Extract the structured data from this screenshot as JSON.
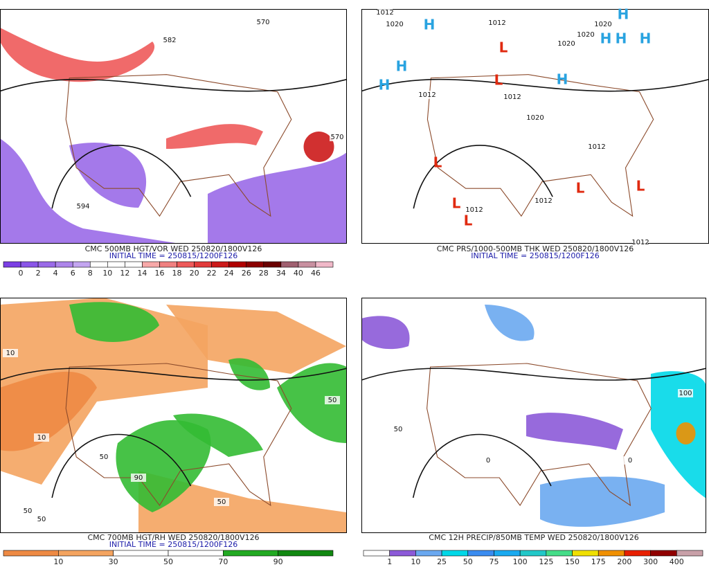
{
  "panels": [
    {
      "caption": "CMC 500MB HGT/VOR WED 250820/1800V126",
      "initial": "INITIAL TIME = 250815/1200F126",
      "colorbar": {
        "labels": [
          "0",
          "2",
          "4",
          "6",
          "8",
          "10",
          "12",
          "14",
          "16",
          "18",
          "20",
          "22",
          "24",
          "26",
          "28",
          "34",
          "40",
          "46"
        ],
        "colors": [
          "#7b3fe4",
          "#8a55e8",
          "#9a6ae8",
          "#ad85ea",
          "#c3a5f0",
          "#ffffff",
          "#ffffff",
          "#ffffff",
          "#f7a8a8",
          "#f08080",
          "#ee5a5a",
          "#e23a3a",
          "#cc1a1a",
          "#b00000",
          "#8c0000",
          "#6a0000",
          "#a06070",
          "#c890a0",
          "#f0b8c8"
        ]
      },
      "map_labels": [
        "570",
        "582",
        "594",
        "570"
      ]
    },
    {
      "caption": "CMC PRS/1000-500MB THK WED 250820/1800V126",
      "initial": "INITIAL TIME = 250815/1200F126",
      "pressure_centers": [
        "H",
        "H",
        "H",
        "H",
        "H",
        "H",
        "H",
        "H",
        "L",
        "L",
        "L",
        "L",
        "L",
        "L",
        "L"
      ],
      "map_labels": [
        "1012",
        "1020",
        "1012",
        "1020",
        "1020",
        "1020",
        "1012",
        "1020",
        "1012",
        "1012",
        "1012",
        "1012",
        "1012"
      ]
    },
    {
      "caption": "CMC 700MB HGT/RH WED 250820/1800V126",
      "initial": "INITIAL TIME = 250815/1200F126",
      "colorbar": {
        "labels": [
          "10",
          "30",
          "50",
          "70",
          "90"
        ],
        "colors": [
          "#ee8a44",
          "#f4a460",
          "#ffffff",
          "#ffffff",
          "#22aa22",
          "#118811"
        ]
      },
      "map_labels": [
        "10",
        "10",
        "50",
        "50",
        "90",
        "50",
        "50",
        "50"
      ]
    },
    {
      "caption": "CMC 12H PRECIP/850MB TEMP WED 250820/1800V126",
      "colorbar": {
        "labels": [
          "1",
          "10",
          "25",
          "50",
          "75",
          "100",
          "125",
          "150",
          "175",
          "200",
          "300",
          "400"
        ],
        "colors": [
          "#ffffff",
          "#8c5ad8",
          "#6aa8f0",
          "#00d8e8",
          "#3a8cf0",
          "#1aaaf0",
          "#22c8c8",
          "#44dd88",
          "#f0e000",
          "#f09000",
          "#e82000",
          "#900000",
          "#c8a0a8"
        ]
      },
      "map_labels": [
        "100",
        "50",
        "0",
        "0"
      ]
    }
  ]
}
